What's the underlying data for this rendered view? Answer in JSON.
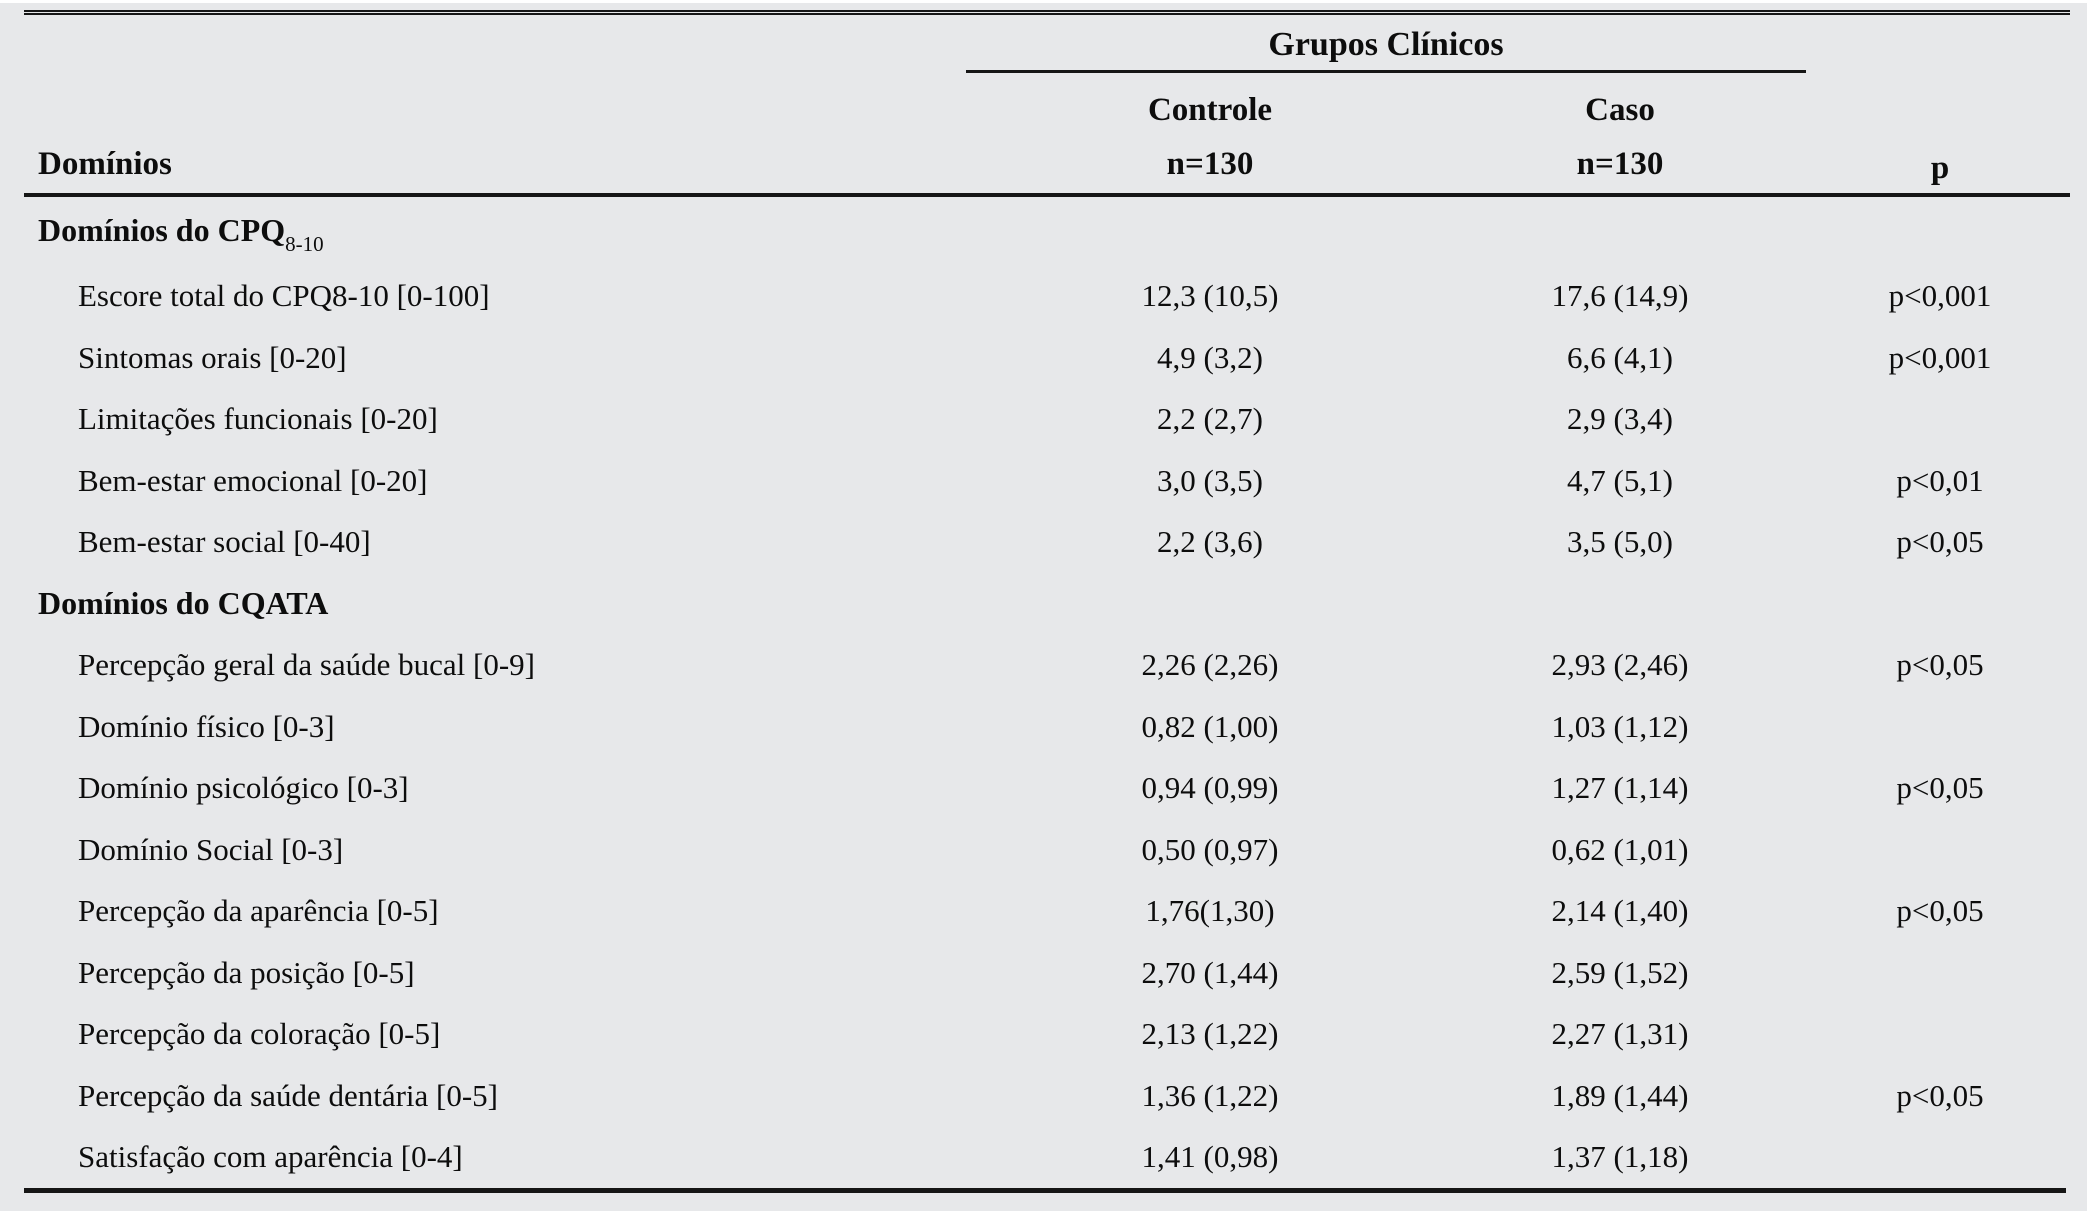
{
  "table": {
    "group_header": "Grupos Clínicos",
    "columns": {
      "domains_label": "Domínios",
      "controle_label": "Controle",
      "controle_n": "n=130",
      "caso_label": "Caso",
      "caso_n": "n=130",
      "p_label": "p"
    },
    "rows": [
      {
        "type": "section",
        "label": "Domínios do CPQ",
        "label_sub": "8-10",
        "controle": "",
        "caso": "",
        "p": ""
      },
      {
        "type": "data",
        "label": "Escore total do CPQ8-10 [0-100]",
        "controle": "12,3 (10,5)",
        "caso": "17,6 (14,9)",
        "p": "p<0,001"
      },
      {
        "type": "data",
        "label": "Sintomas orais [0-20]",
        "controle": "4,9 (3,2)",
        "caso": "6,6 (4,1)",
        "p": "p<0,001"
      },
      {
        "type": "data",
        "label": "Limitações funcionais [0-20]",
        "controle": "2,2 (2,7)",
        "caso": "2,9 (3,4)",
        "p": ""
      },
      {
        "type": "data",
        "label": "Bem-estar emocional [0-20]",
        "controle": "3,0 (3,5)",
        "caso": "4,7 (5,1)",
        "p": "p<0,01"
      },
      {
        "type": "data",
        "label": "Bem-estar social [0-40]",
        "controle": "2,2 (3,6)",
        "caso": "3,5 (5,0)",
        "p": "p<0,05"
      },
      {
        "type": "section",
        "label": "Domínios do CQATA",
        "label_sub": "",
        "controle": "",
        "caso": "",
        "p": ""
      },
      {
        "type": "data",
        "label": "Percepção geral da saúde bucal [0-9]",
        "controle": "2,26 (2,26)",
        "caso": "2,93 (2,46)",
        "p": "p<0,05"
      },
      {
        "type": "data",
        "label": "Domínio físico [0-3]",
        "controle": "0,82 (1,00)",
        "caso": "1,03 (1,12)",
        "p": ""
      },
      {
        "type": "data",
        "label": "Domínio psicológico [0-3]",
        "controle": "0,94 (0,99)",
        "caso": "1,27 (1,14)",
        "p": "p<0,05"
      },
      {
        "type": "data",
        "label": "Domínio Social [0-3]",
        "controle": "0,50 (0,97)",
        "caso": "0,62 (1,01)",
        "p": ""
      },
      {
        "type": "data",
        "label": "Percepção da aparência [0-5]",
        "controle": "1,76(1,30)",
        "caso": "2,14 (1,40)",
        "p": "p<0,05"
      },
      {
        "type": "data",
        "label": "Percepção da posição [0-5]",
        "controle": "2,70 (1,44)",
        "caso": "2,59 (1,52)",
        "p": ""
      },
      {
        "type": "data",
        "label": "Percepção da coloração [0-5]",
        "controle": "2,13 (1,22)",
        "caso": "2,27 (1,31)",
        "p": ""
      },
      {
        "type": "data",
        "label": "Percepção da saúde dentária [0-5]",
        "controle": "1,36 (1,22)",
        "caso": "1,89 (1,44)",
        "p": "p<0,05"
      },
      {
        "type": "data",
        "label": "Satisfação com aparência [0-4]",
        "controle": "1,41 (0,98)",
        "caso": "1,37 (1,18)",
        "p": ""
      }
    ]
  },
  "colors": {
    "background": "#e7e8ea",
    "text": "#0d0d0d",
    "rule": "#161616"
  }
}
